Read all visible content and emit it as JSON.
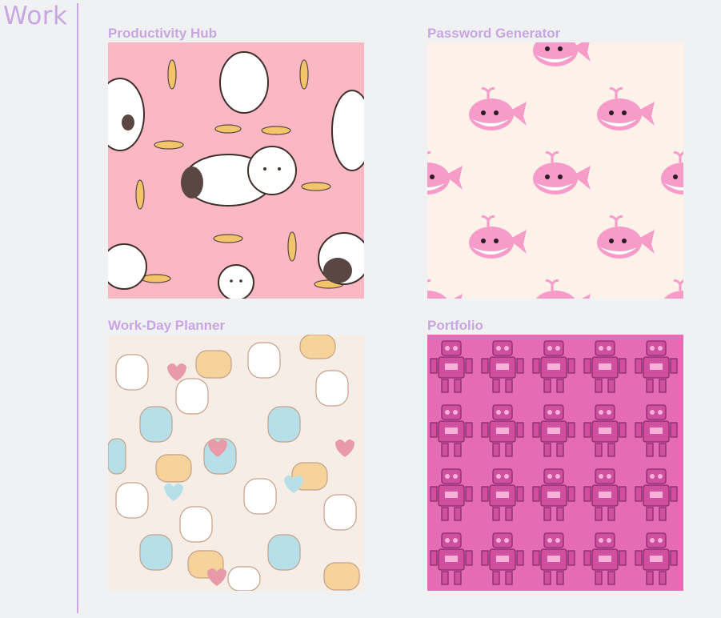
{
  "section": {
    "title": "Work"
  },
  "projects": [
    {
      "title": "Productivity Hub",
      "pattern": "cats-and-fish",
      "colors": {
        "bg": "#fbb7c3",
        "cat": "#ffffff",
        "patch": "#5a4743",
        "fish": "#f3c46a"
      }
    },
    {
      "title": "Password Generator",
      "pattern": "pink-whales",
      "colors": {
        "bg": "#fdf1ea",
        "whale": "#f59cc8",
        "belly": "#ffffff"
      }
    },
    {
      "title": "Work-Day Planner",
      "pattern": "pastel-kittens",
      "colors": {
        "bg": "#f6eee6",
        "cat1": "#ffffff",
        "cat2": "#b7dfe8",
        "cat3": "#f6d39a",
        "heart": "#e89aa8"
      }
    },
    {
      "title": "Portfolio",
      "pattern": "robots-doodle",
      "colors": {
        "bg": "#e46bb4",
        "line": "#8a2b6e"
      }
    }
  ],
  "colors": {
    "accent": "#c8a6e0",
    "page_bg": "#eff1f3"
  }
}
